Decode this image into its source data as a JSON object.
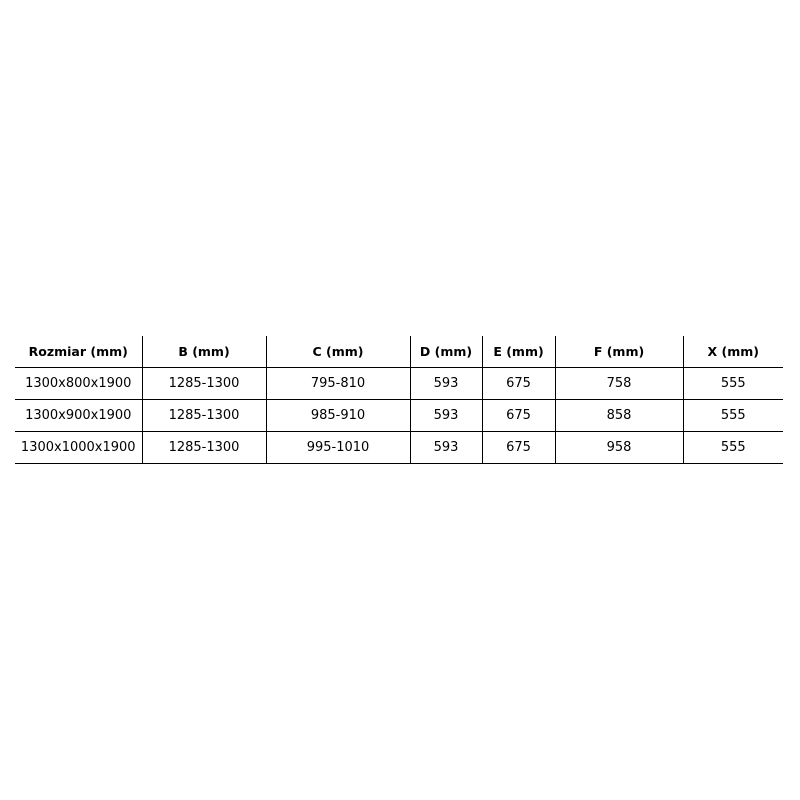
{
  "table": {
    "headers": [
      "Rozmiar (mm)",
      "B (mm)",
      "C (mm)",
      "D (mm)",
      "E (mm)",
      "F (mm)",
      "X (mm)"
    ],
    "rows": [
      [
        "1300x800x1900",
        "1285-1300",
        "795-810",
        "593",
        "675",
        "758",
        "555"
      ],
      [
        "1300x900x1900",
        "1285-1300",
        "985-910",
        "593",
        "675",
        "858",
        "555"
      ],
      [
        "1300x1000x1900",
        "1285-1300",
        "995-1010",
        "593",
        "675",
        "958",
        "555"
      ]
    ]
  }
}
